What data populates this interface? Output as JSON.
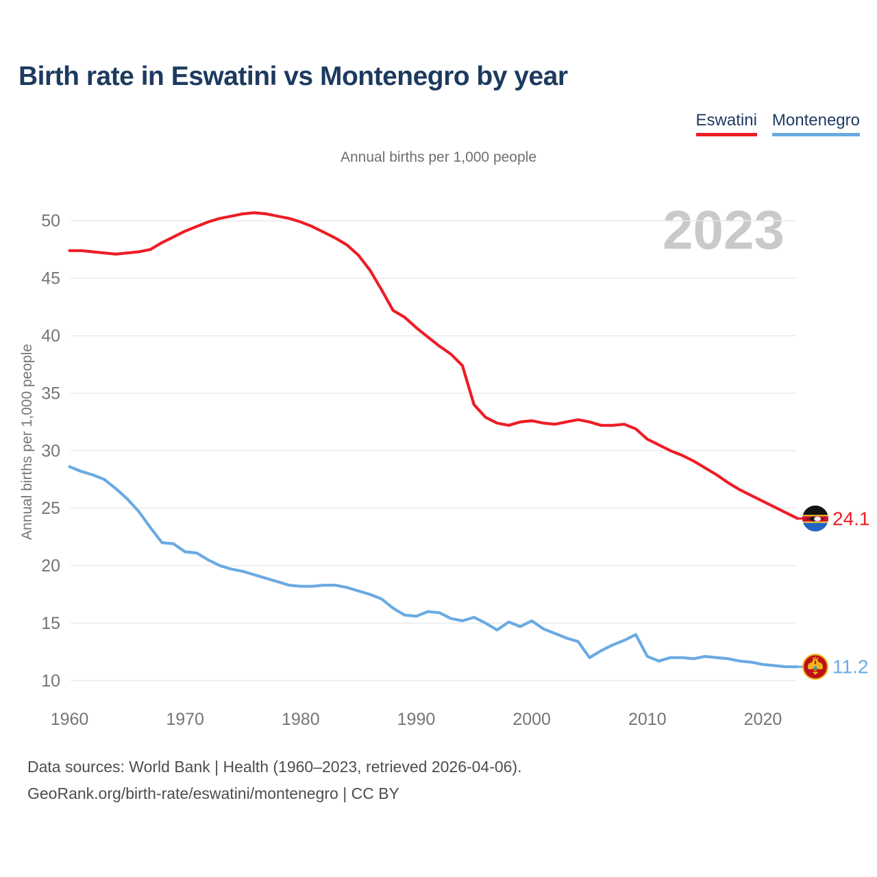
{
  "header": {
    "title": "Birth rate in Eswatini vs Montenegro by year"
  },
  "legend": [
    {
      "label": "Eswatini",
      "color": "#ee1c25"
    },
    {
      "label": "Montenegro",
      "color": "#6aaae2"
    }
  ],
  "subtitle": "Annual births per 1,000 people",
  "watermark": "2023",
  "footer": {
    "line1": "Data sources: World Bank | Health (1960–2023, retrieved 2026-04-06).",
    "line2": "GeoRank.org/birth-rate/eswatini/montenegro | CC BY"
  },
  "chart_data": {
    "type": "line",
    "title": "Annual births per 1,000 people",
    "ylabel": "Annual births per 1,000 people",
    "xlabel": "",
    "x_start": 1960,
    "x_end": 2023,
    "x_ticks": [
      1960,
      1970,
      1980,
      1990,
      2000,
      2010,
      2020
    ],
    "y_ticks": [
      10,
      15,
      20,
      25,
      30,
      35,
      40,
      45,
      50
    ],
    "ylim": [
      10,
      50
    ],
    "grid": "horizontal",
    "legend_position": "top-right",
    "series": [
      {
        "name": "Eswatini",
        "color": "#ee1c25",
        "end_label": "24.1",
        "flag": "eswatini",
        "values": [
          47.4,
          47.4,
          47.3,
          47.2,
          47.1,
          47.2,
          47.3,
          47.5,
          48.1,
          48.6,
          49.1,
          49.5,
          49.9,
          50.2,
          50.4,
          50.6,
          50.7,
          50.6,
          50.4,
          50.2,
          49.9,
          49.5,
          49.0,
          48.5,
          47.9,
          47.0,
          45.7,
          44.0,
          42.2,
          41.6,
          40.7,
          39.9,
          39.1,
          38.4,
          37.4,
          34.0,
          32.9,
          32.4,
          32.2,
          32.5,
          32.6,
          32.4,
          32.3,
          32.5,
          32.7,
          32.5,
          32.2,
          32.2,
          32.3,
          31.9,
          31.0,
          30.5,
          30.0,
          29.6,
          29.1,
          28.5,
          27.9,
          27.2,
          26.6,
          26.1,
          25.6,
          25.1,
          24.6,
          24.1
        ]
      },
      {
        "name": "Montenegro",
        "color": "#6aaae2",
        "end_label": "11.2",
        "flag": "montenegro",
        "values": [
          28.6,
          28.2,
          27.9,
          27.5,
          26.7,
          25.8,
          24.7,
          23.3,
          22.0,
          21.9,
          21.2,
          21.1,
          20.5,
          20.0,
          19.7,
          19.5,
          19.2,
          18.9,
          18.6,
          18.3,
          18.2,
          18.2,
          18.3,
          18.3,
          18.1,
          17.8,
          17.5,
          17.1,
          16.3,
          15.7,
          15.6,
          16.0,
          15.9,
          15.4,
          15.2,
          15.5,
          15.0,
          14.4,
          15.1,
          14.7,
          15.2,
          14.5,
          14.1,
          13.7,
          13.4,
          12.0,
          12.6,
          13.1,
          13.5,
          14.0,
          12.1,
          11.7,
          12.0,
          12.0,
          11.9,
          12.1,
          12.0,
          11.9,
          11.7,
          11.6,
          11.4,
          11.3,
          11.2,
          11.2
        ]
      }
    ]
  }
}
